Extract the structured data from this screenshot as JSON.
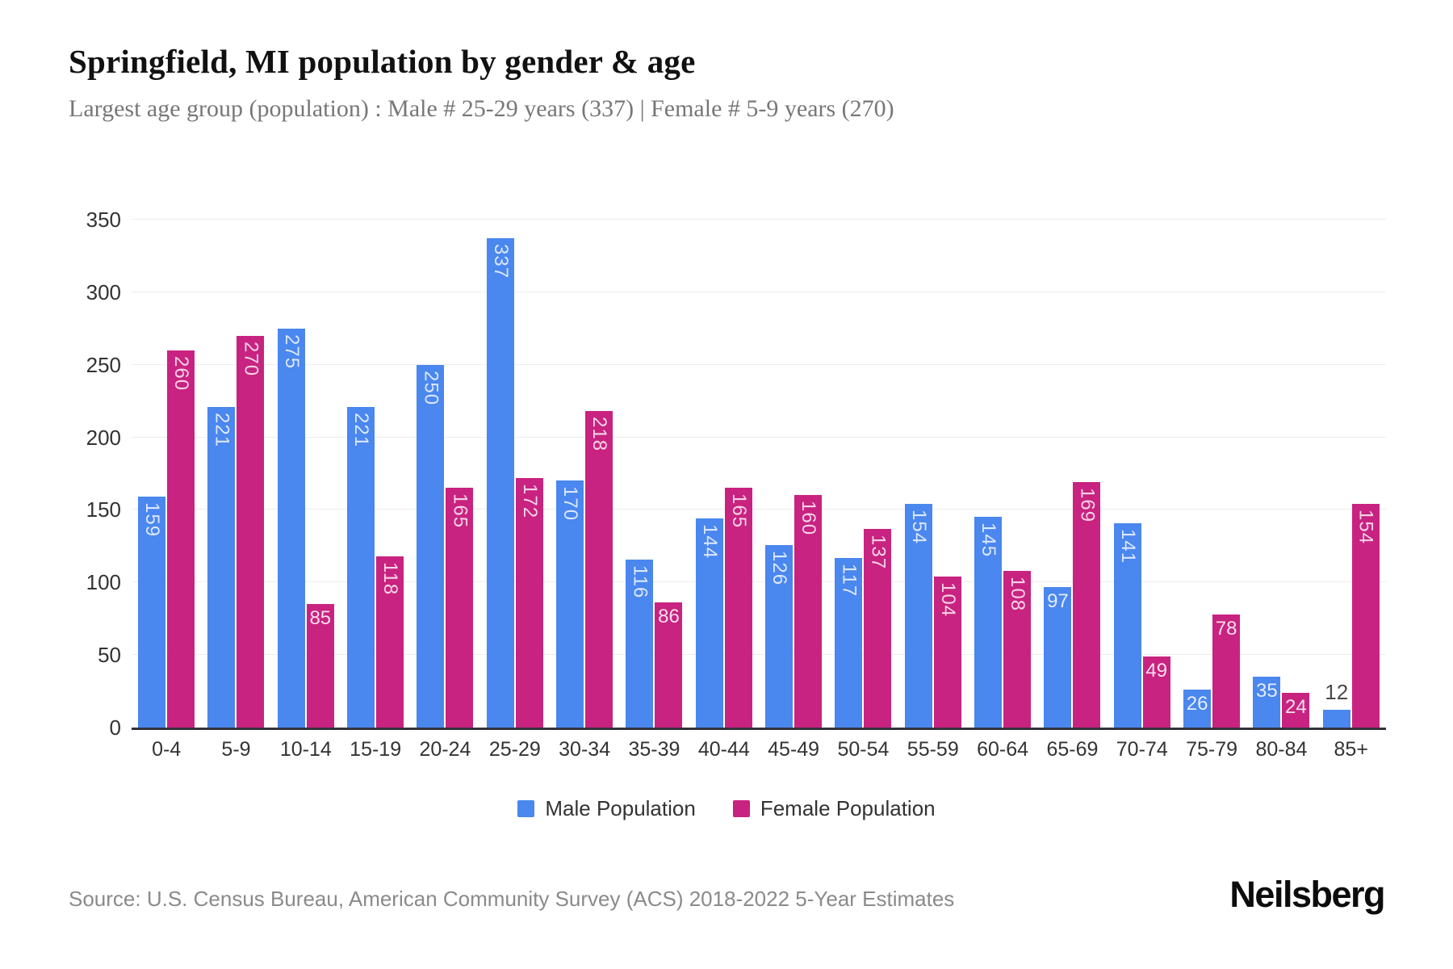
{
  "header": {
    "title": "Springfield, MI population by gender & age",
    "subtitle": "Largest age group (population) : Male # 25-29 years (337) | Female # 5-9 years (270)"
  },
  "chart_data": {
    "type": "bar",
    "title": "Springfield, MI population by gender & age",
    "categories": [
      "0-4",
      "5-9",
      "10-14",
      "15-19",
      "20-24",
      "25-29",
      "30-34",
      "35-39",
      "40-44",
      "45-49",
      "50-54",
      "55-59",
      "60-64",
      "65-69",
      "70-74",
      "75-79",
      "80-84",
      "85+"
    ],
    "series": [
      {
        "name": "Male Population",
        "color": "#4a87ee",
        "values": [
          159,
          221,
          275,
          221,
          250,
          337,
          170,
          116,
          144,
          126,
          117,
          154,
          145,
          97,
          141,
          26,
          35,
          12
        ]
      },
      {
        "name": "Female Population",
        "color": "#c82380",
        "values": [
          260,
          270,
          85,
          118,
          165,
          172,
          218,
          86,
          165,
          160,
          137,
          104,
          108,
          169,
          49,
          78,
          24,
          154
        ]
      }
    ],
    "xlabel": "",
    "ylabel": "",
    "ylim": [
      0,
      350
    ],
    "yticks": [
      0,
      50,
      100,
      150,
      200,
      250,
      300,
      350
    ],
    "grid": true,
    "legend_position": "bottom"
  },
  "legend": {
    "male_label": "Male Population",
    "female_label": "Female Population"
  },
  "footer": {
    "source": "Source: U.S. Census Bureau, American Community Survey (ACS) 2018-2022 5-Year Estimates",
    "logo": "Neilsberg"
  },
  "colors": {
    "male": "#4a87ee",
    "female": "#c82380",
    "axis_line": "#32323c",
    "gridline": "#ededed",
    "tick_text": "#333333",
    "subtitle_text": "#777777",
    "source_text": "#8a8a8a"
  }
}
